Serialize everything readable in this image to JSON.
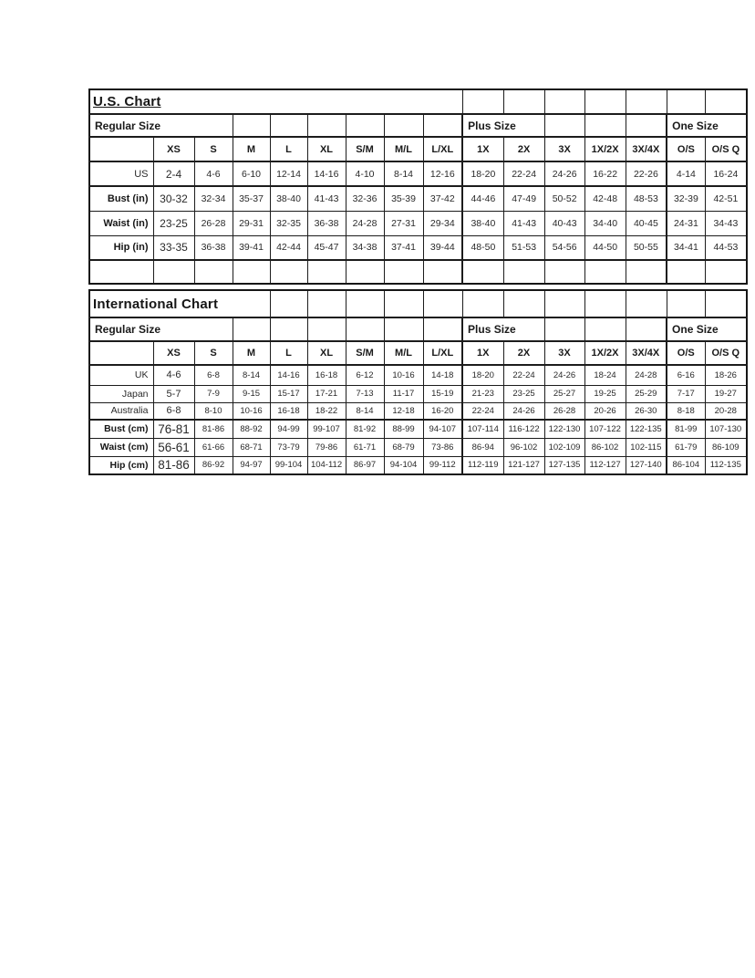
{
  "us_chart": {
    "title": "U.S. Chart",
    "section_labels": {
      "regular": "Regular Size",
      "plus": "Plus Size",
      "one": "One Size"
    },
    "size_headers": [
      "XS",
      "S",
      "M",
      "L",
      "XL",
      "S/M",
      "M/L",
      "L/XL",
      "1X",
      "2X",
      "3X",
      "1X/2X",
      "3X/4X",
      "O/S",
      "O/S Q"
    ],
    "rows": [
      {
        "label": "US",
        "label_bold": false,
        "values": [
          "2-4",
          "4-6",
          "6-10",
          "12-14",
          "14-16",
          "4-10",
          "8-14",
          "12-16",
          "18-20",
          "22-24",
          "24-26",
          "16-22",
          "22-26",
          "4-14",
          "16-24"
        ]
      },
      {
        "label": "Bust (in)",
        "label_bold": true,
        "values": [
          "30-32",
          "32-34",
          "35-37",
          "38-40",
          "41-43",
          "32-36",
          "35-39",
          "37-42",
          "44-46",
          "47-49",
          "50-52",
          "42-48",
          "48-53",
          "32-39",
          "42-51"
        ]
      },
      {
        "label": "Waist (in)",
        "label_bold": true,
        "values": [
          "23-25",
          "26-28",
          "29-31",
          "32-35",
          "36-38",
          "24-28",
          "27-31",
          "29-34",
          "38-40",
          "41-43",
          "40-43",
          "34-40",
          "40-45",
          "24-31",
          "34-43"
        ]
      },
      {
        "label": "Hip (in)",
        "label_bold": true,
        "values": [
          "33-35",
          "36-38",
          "39-41",
          "42-44",
          "45-47",
          "34-38",
          "37-41",
          "39-44",
          "48-50",
          "51-53",
          "54-56",
          "44-50",
          "50-55",
          "34-41",
          "44-53"
        ]
      }
    ]
  },
  "international_chart": {
    "title": "International Chart",
    "section_labels": {
      "regular": "Regular Size",
      "plus": "Plus Size",
      "one": "One Size"
    },
    "size_headers": [
      "XS",
      "S",
      "M",
      "L",
      "XL",
      "S/M",
      "M/L",
      "L/XL",
      "1X",
      "2X",
      "3X",
      "1X/2X",
      "3X/4X",
      "O/S",
      "O/S Q"
    ],
    "rows": [
      {
        "label": "UK",
        "label_bold": false,
        "values": [
          "4-6",
          "6-8",
          "8-14",
          "14-16",
          "16-18",
          "6-12",
          "10-16",
          "14-18",
          "18-20",
          "22-24",
          "24-26",
          "18-24",
          "24-28",
          "6-16",
          "18-26"
        ]
      },
      {
        "label": "Japan",
        "label_bold": false,
        "values": [
          "5-7",
          "7-9",
          "9-15",
          "15-17",
          "17-21",
          "7-13",
          "11-17",
          "15-19",
          "21-23",
          "23-25",
          "25-27",
          "19-25",
          "25-29",
          "7-17",
          "19-27"
        ]
      },
      {
        "label": "Australia",
        "label_bold": false,
        "values": [
          "6-8",
          "8-10",
          "10-16",
          "16-18",
          "18-22",
          "8-14",
          "12-18",
          "16-20",
          "22-24",
          "24-26",
          "26-28",
          "20-26",
          "26-30",
          "8-18",
          "20-28"
        ]
      },
      {
        "label": "Bust (cm)",
        "label_bold": true,
        "values": [
          "76-81",
          "81-86",
          "88-92",
          "94-99",
          "99-107",
          "81-92",
          "88-99",
          "94-107",
          "107-114",
          "116-122",
          "122-130",
          "107-122",
          "122-135",
          "81-99",
          "107-130"
        ]
      },
      {
        "label": "Waist (cm)",
        "label_bold": true,
        "values": [
          "56-61",
          "61-66",
          "68-71",
          "73-79",
          "79-86",
          "61-71",
          "68-79",
          "73-86",
          "86-94",
          "96-102",
          "102-109",
          "86-102",
          "102-115",
          "61-79",
          "86-109"
        ]
      },
      {
        "label": "Hip (cm)",
        "label_bold": true,
        "values": [
          "81-86",
          "86-92",
          "94-97",
          "99-104",
          "104-112",
          "86-97",
          "94-104",
          "99-112",
          "112-119",
          "121-127",
          "127-135",
          "112-127",
          "127-140",
          "86-104",
          "112-135"
        ]
      }
    ]
  }
}
